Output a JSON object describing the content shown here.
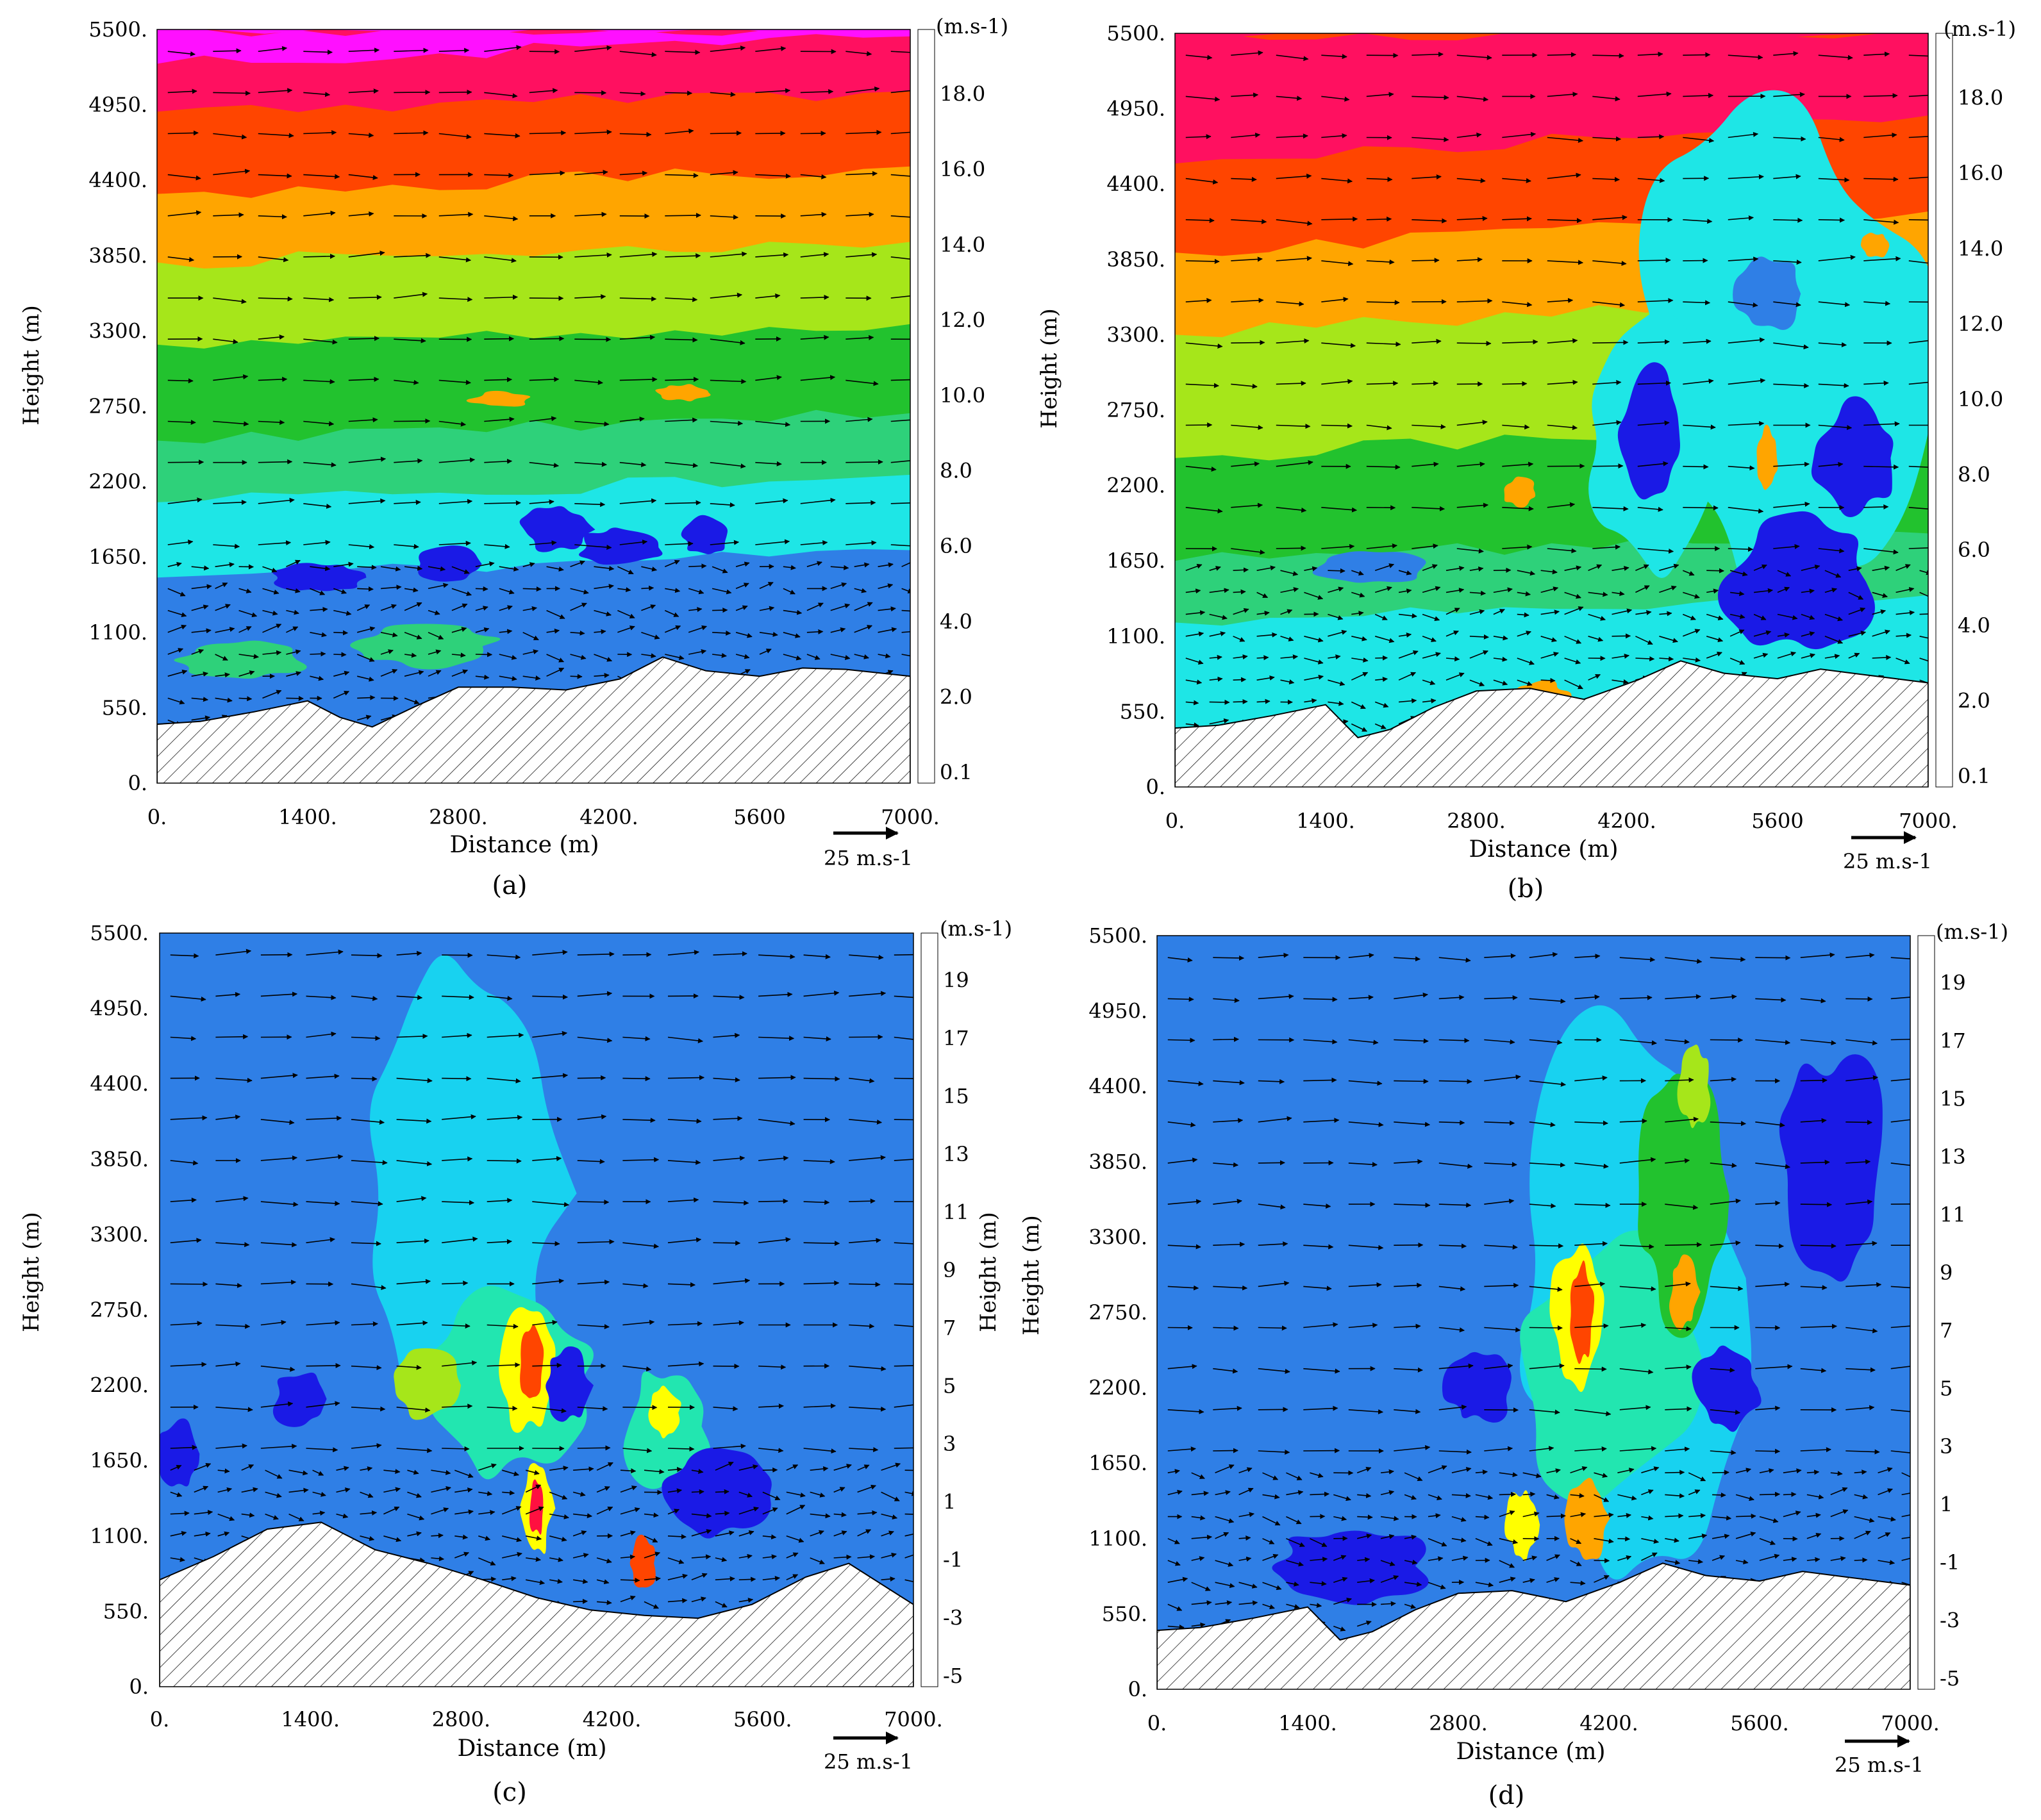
{
  "figure": {
    "panels": [
      {
        "label": "(a)",
        "ylabel": "Height (m)",
        "xlabel": "Distance (m)",
        "x_ticks": [
          "0.",
          "1400.",
          "2800.",
          "4200.",
          "5600",
          "7000."
        ],
        "y_ticks": [
          "0.",
          "550.",
          "1100.",
          "1650.",
          "2200.",
          "2750.",
          "3300.",
          "3850.",
          "4400.",
          "4950.",
          "5500."
        ],
        "colorbar_unit": "(m.s-1)",
        "colorbar_labels": [
          "0.1",
          "2.0",
          "4.0",
          "6.0",
          "8.0",
          "10.0",
          "12.0",
          "14.0",
          "16.0",
          "18.0"
        ],
        "vector_scale_label": "25 m.s-1"
      },
      {
        "label": "(b)",
        "ylabel": "Height (m)",
        "xlabel": "Distance (m)",
        "x_ticks": [
          "0.",
          "1400.",
          "2800.",
          "4200.",
          "5600",
          "7000."
        ],
        "y_ticks": [
          "0.",
          "550.",
          "1100.",
          "1650.",
          "2200.",
          "2750.",
          "3300.",
          "3850.",
          "4400.",
          "4950.",
          "5500."
        ],
        "colorbar_unit": "(m.s-1)",
        "colorbar_labels": [
          "0.1",
          "2.0",
          "4.0",
          "6.0",
          "8.0",
          "10.0",
          "12.0",
          "14.0",
          "16.0",
          "18.0"
        ],
        "vector_scale_label": "25 m.s-1"
      },
      {
        "label": "(c)",
        "ylabel": "Height (m)",
        "xlabel": "Distance (m)",
        "x_ticks": [
          "0.",
          "1400.",
          "2800.",
          "4200.",
          "5600.",
          "7000."
        ],
        "y_ticks": [
          "0.",
          "550.",
          "1100.",
          "1650.",
          "2200.",
          "2750.",
          "3300.",
          "3850.",
          "4400.",
          "4950.",
          "5500."
        ],
        "colorbar_unit": "(m.s-1)",
        "colorbar_labels": [
          "-5",
          "-3",
          "-1",
          "1",
          "3",
          "5",
          "7",
          "9",
          "11",
          "13",
          "15",
          "17",
          "19"
        ],
        "vector_scale_label": "25 m.s-1"
      },
      {
        "label": "(d)",
        "ylabel": "Height (m)",
        "xlabel": "Distance (m)",
        "x_ticks": [
          "0.",
          "1400.",
          "2800.",
          "4200.",
          "5600.",
          "7000."
        ],
        "y_ticks": [
          "0.",
          "550.",
          "1100.",
          "1650.",
          "2200.",
          "2750.",
          "3300.",
          "3850.",
          "4400.",
          "4950.",
          "5500."
        ],
        "colorbar_unit": "(m.s-1)",
        "colorbar_labels": [
          "-5",
          "-3",
          "-1",
          "1",
          "3",
          "5",
          "7",
          "9",
          "11",
          "13",
          "15",
          "17",
          "19"
        ],
        "vector_scale_label": "25 m.s-1"
      }
    ]
  },
  "chart_data": [
    {
      "type": "heatmap",
      "title": "(a)",
      "xlabel": "Distance (m)",
      "ylabel": "Height (m)",
      "xlim": [
        0,
        7000
      ],
      "ylim": [
        0,
        5500
      ],
      "color_unit": "m.s-1",
      "color_levels": [
        0.1,
        2.0,
        4.0,
        6.0,
        8.0,
        10.0,
        12.0,
        14.0,
        16.0,
        18.0
      ],
      "color_scale": [
        "#1a1ae6",
        "#2f7fe6",
        "#1ee6e6",
        "#2ed17a",
        "#22c22e",
        "#a6e61a",
        "#ffa500",
        "#ff4500",
        "#ff1060",
        "#ff10ff"
      ],
      "terrain": {
        "x": [
          0,
          400,
          900,
          1400,
          1700,
          2000,
          2400,
          2800,
          3300,
          3800,
          4300,
          4700,
          5100,
          5600,
          6000,
          6400,
          7000
        ],
        "y": [
          430,
          450,
          520,
          600,
          480,
          410,
          560,
          700,
          700,
          680,
          760,
          920,
          820,
          780,
          840,
          830,
          780
        ]
      },
      "bands": [
        {
          "base": [
            [
              0,
              5500,
              18,
              5500,
              0.99
            ],
            [
              0,
              5250,
              16,
              5450,
              0.97
            ],
            [
              0,
              4900,
              14,
              5050,
              0.96
            ],
            [
              0,
              4300,
              12,
              4500,
              0.97
            ],
            [
              0,
              3800,
              10,
              3950,
              0.96
            ],
            [
              0,
              3200,
              8,
              3350,
              0.96
            ],
            [
              0,
              2500,
              6,
              2700,
              0.97
            ],
            [
              0,
              2050,
              4,
              2250,
              0.96
            ],
            [
              0,
              1500,
              2,
              1700,
              0.97
            ],
            [
              0,
              0,
              0.1,
              0,
              1.0
            ]
          ]
        }
      ],
      "blobs": [
        {
          "x": 1500,
          "y": 1500,
          "rx": 420,
          "ry": 110,
          "level": 0.1
        },
        {
          "x": 2700,
          "y": 1600,
          "rx": 300,
          "ry": 120,
          "level": 0.1
        },
        {
          "x": 3700,
          "y": 1850,
          "rx": 320,
          "ry": 160,
          "level": 0.1
        },
        {
          "x": 5100,
          "y": 1800,
          "rx": 200,
          "ry": 140,
          "level": 0.1
        },
        {
          "x": 4300,
          "y": 1720,
          "rx": 380,
          "ry": 150,
          "level": 0.1
        },
        {
          "x": 3200,
          "y": 2800,
          "rx": 280,
          "ry": 60,
          "level": 12.0
        },
        {
          "x": 4900,
          "y": 2850,
          "rx": 260,
          "ry": 60,
          "level": 12.0
        },
        {
          "x": 800,
          "y": 900,
          "rx": 600,
          "ry": 140,
          "level": 6.0
        },
        {
          "x": 2500,
          "y": 1000,
          "rx": 700,
          "ry": 150,
          "level": 6.0
        }
      ],
      "vector_scale": 25,
      "vector_scale_unit": "m.s-1"
    },
    {
      "type": "heatmap",
      "title": "(b)",
      "xlabel": "Distance (m)",
      "ylabel": "Height (m)",
      "xlim": [
        0,
        7000
      ],
      "ylim": [
        0,
        5500
      ],
      "color_unit": "m.s-1",
      "color_levels": [
        0.1,
        2.0,
        4.0,
        6.0,
        8.0,
        10.0,
        12.0,
        14.0,
        16.0,
        18.0
      ],
      "color_scale": [
        "#1a1ae6",
        "#2f7fe6",
        "#1ee6e6",
        "#2ed17a",
        "#22c22e",
        "#a6e61a",
        "#ffa500",
        "#ff4500",
        "#ff1060",
        "#ff10ff"
      ],
      "terrain": {
        "x": [
          0,
          400,
          900,
          1400,
          1700,
          2000,
          2400,
          2800,
          3300,
          3800,
          4300,
          4700,
          5100,
          5600,
          6000,
          6400,
          7000
        ],
        "y": [
          430,
          450,
          520,
          600,
          360,
          420,
          580,
          700,
          720,
          640,
          780,
          920,
          830,
          790,
          860,
          820,
          760
        ]
      },
      "bands": [
        {
          "base": [
            [
              0,
              5500,
              16,
              5500,
              0.99
            ],
            [
              0,
              4550,
              14,
              4900,
              0.97
            ],
            [
              0,
              3900,
              12,
              4200,
              0.96
            ],
            [
              0,
              3300,
              10,
              3600,
              0.96
            ],
            [
              0,
              2400,
              8,
              2700,
              0.97
            ],
            [
              0,
              1650,
              6,
              1850,
              0.96
            ],
            [
              0,
              1200,
              4,
              1400,
              0.97
            ],
            [
              0,
              0,
              2,
              0,
              1.0
            ]
          ]
        }
      ],
      "blobs": [
        {
          "x": 5600,
          "y": 3200,
          "rx": 1300,
          "ry": 1700,
          "level": 4.0
        },
        {
          "x": 4400,
          "y": 2500,
          "rx": 600,
          "ry": 900,
          "level": 4.0
        },
        {
          "x": 5800,
          "y": 1500,
          "rx": 700,
          "ry": 500,
          "level": 0.1
        },
        {
          "x": 6300,
          "y": 2400,
          "rx": 400,
          "ry": 400,
          "level": 0.1
        },
        {
          "x": 4400,
          "y": 2600,
          "rx": 300,
          "ry": 450,
          "level": 0.1
        },
        {
          "x": 5500,
          "y": 3600,
          "rx": 300,
          "ry": 300,
          "level": 2.0
        },
        {
          "x": 1800,
          "y": 1600,
          "rx": 500,
          "ry": 120,
          "level": 2.0
        },
        {
          "x": 5500,
          "y": 2400,
          "rx": 110,
          "ry": 220,
          "level": 12.0
        },
        {
          "x": 6500,
          "y": 3950,
          "rx": 140,
          "ry": 90,
          "level": 12.0
        },
        {
          "x": 3400,
          "y": 650,
          "rx": 250,
          "ry": 120,
          "level": 12.0
        },
        {
          "x": 3200,
          "y": 2150,
          "rx": 160,
          "ry": 100,
          "level": 12.0
        }
      ],
      "vector_scale": 25,
      "vector_scale_unit": "m.s-1"
    },
    {
      "type": "heatmap",
      "title": "(c)",
      "xlabel": "Distance (m)",
      "ylabel": "Height (m)",
      "xlim": [
        0,
        7000
      ],
      "ylim": [
        0,
        5500
      ],
      "color_unit": "m.s-1",
      "color_levels": [
        -5,
        -3,
        -1,
        1,
        3,
        5,
        7,
        9,
        11,
        13,
        15,
        17,
        19
      ],
      "color_scale": [
        "#7a1ae6",
        "#1a1ae6",
        "#2f7fe6",
        "#18d2f0",
        "#22e6b0",
        "#22c22e",
        "#a6e61a",
        "#ffff00",
        "#ffa500",
        "#ff4500",
        "#ff1040",
        "#e61aa0",
        "#ff10ff"
      ],
      "terrain": {
        "x": [
          0,
          500,
          1000,
          1500,
          2000,
          2500,
          3000,
          3500,
          4000,
          4500,
          5000,
          5500,
          6000,
          6400,
          7000
        ],
        "y": [
          780,
          950,
          1150,
          1200,
          1000,
          900,
          780,
          650,
          560,
          520,
          500,
          600,
          800,
          900,
          600
        ]
      },
      "bands": [
        {
          "base": [
            [
              0,
              0,
              -1,
              0,
              1.0
            ]
          ]
        }
      ],
      "blobs": [
        {
          "x": 2800,
          "y": 3600,
          "rx": 900,
          "ry": 1700,
          "level": 1
        },
        {
          "x": 3200,
          "y": 2200,
          "rx": 800,
          "ry": 650,
          "level": 3
        },
        {
          "x": 4700,
          "y": 1900,
          "rx": 400,
          "ry": 450,
          "level": 3
        },
        {
          "x": 2500,
          "y": 2200,
          "rx": 300,
          "ry": 250,
          "level": 7
        },
        {
          "x": 3400,
          "y": 2300,
          "rx": 260,
          "ry": 450,
          "level": 9
        },
        {
          "x": 3450,
          "y": 2350,
          "rx": 120,
          "ry": 300,
          "level": 13
        },
        {
          "x": 3500,
          "y": 1300,
          "rx": 150,
          "ry": 350,
          "level": 9
        },
        {
          "x": 3500,
          "y": 1300,
          "rx": 70,
          "ry": 200,
          "level": 15
        },
        {
          "x": 4500,
          "y": 900,
          "rx": 120,
          "ry": 200,
          "level": 13
        },
        {
          "x": 4700,
          "y": 2000,
          "rx": 150,
          "ry": 200,
          "level": 9
        },
        {
          "x": 1300,
          "y": 2100,
          "rx": 250,
          "ry": 200,
          "level": -3
        },
        {
          "x": 3800,
          "y": 2200,
          "rx": 200,
          "ry": 260,
          "level": -3
        },
        {
          "x": 5200,
          "y": 1400,
          "rx": 500,
          "ry": 300,
          "level": -3
        },
        {
          "x": 150,
          "y": 1700,
          "rx": 200,
          "ry": 250,
          "level": -3
        }
      ],
      "vector_scale": 25,
      "vector_scale_unit": "m.s-1"
    },
    {
      "type": "heatmap",
      "title": "(d)",
      "xlabel": "Distance (m)",
      "ylabel": "Height (m)",
      "xlim": [
        0,
        7000
      ],
      "ylim": [
        0,
        5500
      ],
      "color_unit": "m.s-1",
      "color_levels": [
        -5,
        -3,
        -1,
        1,
        3,
        5,
        7,
        9,
        11,
        13,
        15,
        17,
        19
      ],
      "color_scale": [
        "#7a1ae6",
        "#1a1ae6",
        "#2f7fe6",
        "#18d2f0",
        "#22e6b0",
        "#22c22e",
        "#a6e61a",
        "#ffff00",
        "#ffa500",
        "#ff4500",
        "#ff1040",
        "#e61aa0",
        "#ff10ff"
      ],
      "terrain": {
        "x": [
          0,
          400,
          900,
          1400,
          1700,
          2000,
          2400,
          2800,
          3300,
          3800,
          4300,
          4700,
          5100,
          5600,
          6000,
          6400,
          7000
        ],
        "y": [
          430,
          450,
          520,
          600,
          360,
          420,
          580,
          700,
          720,
          640,
          780,
          920,
          830,
          790,
          860,
          820,
          760
        ]
      },
      "bands": [
        {
          "base": [
            [
              0,
              0,
              -1,
              0,
              1.0
            ]
          ]
        }
      ],
      "blobs": [
        {
          "x": 4400,
          "y": 3000,
          "rx": 1100,
          "ry": 2100,
          "level": 1
        },
        {
          "x": 4200,
          "y": 2300,
          "rx": 800,
          "ry": 1000,
          "level": 3
        },
        {
          "x": 4900,
          "y": 3600,
          "rx": 400,
          "ry": 900,
          "level": 5
        },
        {
          "x": 3900,
          "y": 2700,
          "rx": 250,
          "ry": 500,
          "level": 9
        },
        {
          "x": 3950,
          "y": 2750,
          "rx": 110,
          "ry": 350,
          "level": 13
        },
        {
          "x": 4900,
          "y": 2900,
          "rx": 140,
          "ry": 250,
          "level": 11
        },
        {
          "x": 3400,
          "y": 1200,
          "rx": 150,
          "ry": 250,
          "level": 9
        },
        {
          "x": 4000,
          "y": 1250,
          "rx": 200,
          "ry": 300,
          "level": 11
        },
        {
          "x": 5000,
          "y": 4400,
          "rx": 150,
          "ry": 300,
          "level": 7
        },
        {
          "x": 3000,
          "y": 2200,
          "rx": 300,
          "ry": 250,
          "level": -3
        },
        {
          "x": 5300,
          "y": 2200,
          "rx": 300,
          "ry": 300,
          "level": -3
        },
        {
          "x": 6300,
          "y": 3800,
          "rx": 500,
          "ry": 800,
          "level": -3
        },
        {
          "x": 1800,
          "y": 900,
          "rx": 700,
          "ry": 300,
          "level": -3
        }
      ],
      "vector_scale": 25,
      "vector_scale_unit": "m.s-1"
    }
  ]
}
